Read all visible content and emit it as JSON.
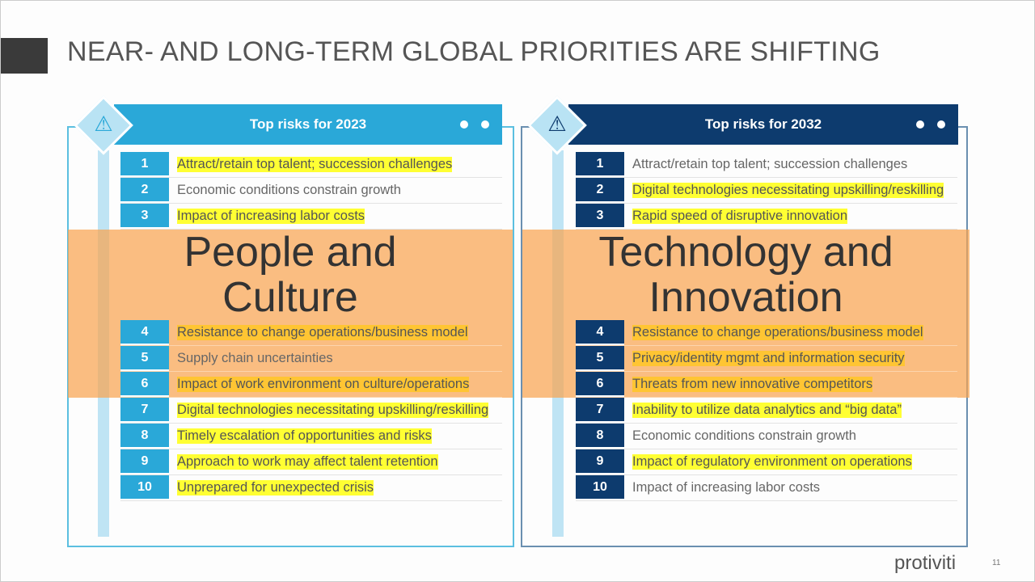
{
  "title": "NEAR- AND LONG-TERM GLOBAL PRIORITIES ARE SHIFTING",
  "colors": {
    "left_header": "#2aa8d8",
    "right_header": "#0d3b6e",
    "highlight": "#ffff33",
    "overlay": "#f8a450"
  },
  "left": {
    "header": "Top risks for 2023",
    "overlay_line1": "People and",
    "overlay_line2": "Culture",
    "items": [
      {
        "n": "1",
        "text": "Attract/retain top talent; succession challenges",
        "hl": true
      },
      {
        "n": "2",
        "text": "Economic conditions constrain growth",
        "hl": false
      },
      {
        "n": "3",
        "text": "Impact of increasing labor costs",
        "hl": true
      },
      {
        "n": "4",
        "text": "Resistance to change operations/business model",
        "hl": true
      },
      {
        "n": "5",
        "text": "Supply chain uncertainties",
        "hl": false
      },
      {
        "n": "6",
        "text": "Impact of work environment on culture/operations",
        "hl": true
      },
      {
        "n": "7",
        "text": "Digital technologies necessitating upskilling/reskilling",
        "hl": true
      },
      {
        "n": "8",
        "text": "Timely escalation of opportunities and risks",
        "hl": true
      },
      {
        "n": "9",
        "text": "Approach to work may affect talent retention",
        "hl": true
      },
      {
        "n": "10",
        "text": "Unprepared for unexpected crisis",
        "hl": true
      }
    ]
  },
  "right": {
    "header": "Top risks for 2032",
    "overlay_line1": "Technology and",
    "overlay_line2": "Innovation",
    "items": [
      {
        "n": "1",
        "text": "Attract/retain top talent; succession challenges",
        "hl": false
      },
      {
        "n": "2",
        "text": "Digital technologies necessitating upskilling/reskilling",
        "hl": true
      },
      {
        "n": "3",
        "text": "Rapid speed of disruptive innovation",
        "hl": true
      },
      {
        "n": "4",
        "text": "Resistance to change operations/business model",
        "hl": true
      },
      {
        "n": "5",
        "text": "Privacy/identity mgmt and information security",
        "hl": true
      },
      {
        "n": "6",
        "text": "Threats from new innovative competitors",
        "hl": true
      },
      {
        "n": "7",
        "text": "Inability to utilize data analytics and “big data”",
        "hl": true
      },
      {
        "n": "8",
        "text": "Economic conditions constrain growth",
        "hl": false
      },
      {
        "n": "9",
        "text": "Impact of regulatory environment on operations",
        "hl": true
      },
      {
        "n": "10",
        "text": "Impact of increasing labor costs",
        "hl": false
      }
    ]
  },
  "brand": "protiviti",
  "page_number": "11"
}
